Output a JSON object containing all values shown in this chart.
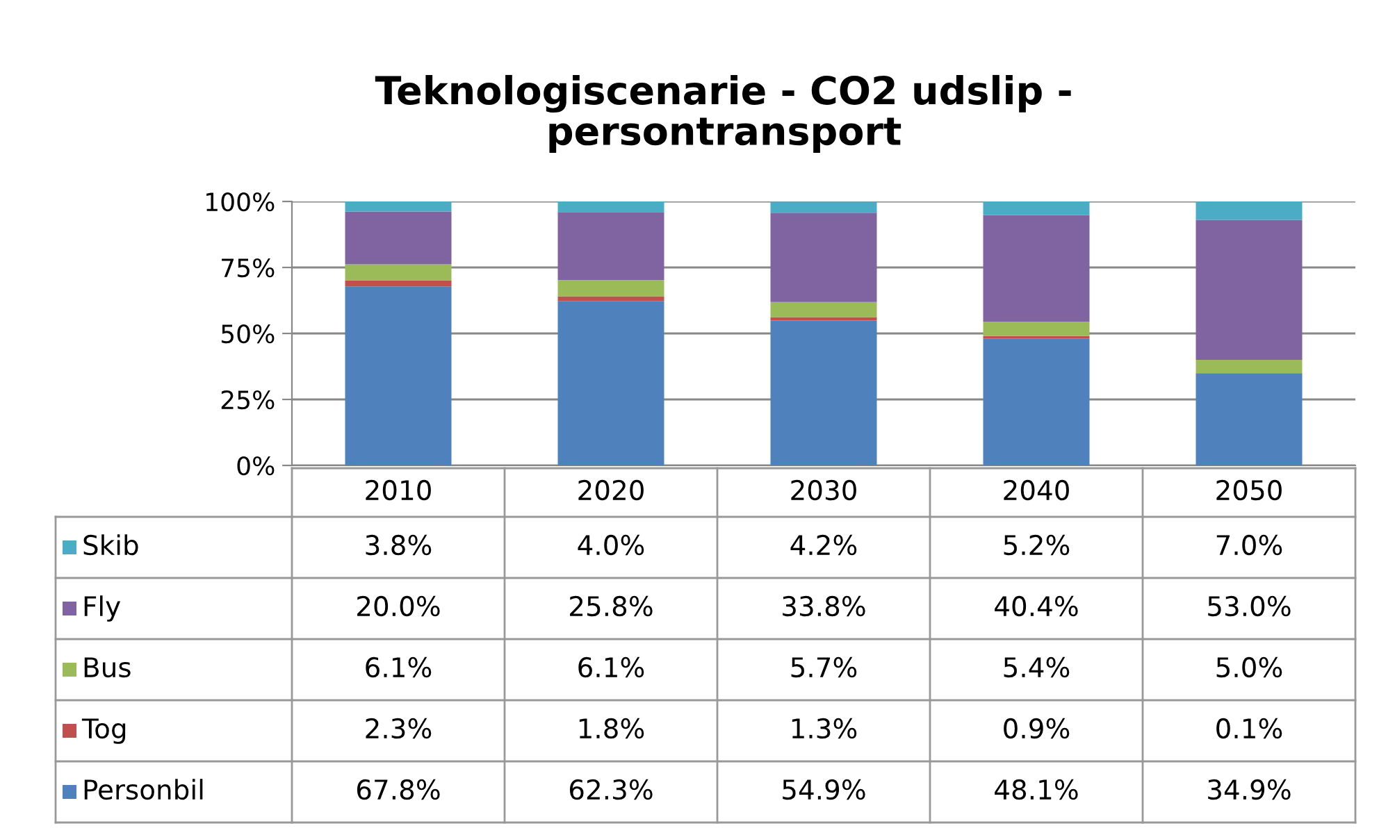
{
  "chart_data": {
    "type": "bar",
    "title": "Teknologiscenarie - CO2 udslip -\npersontransport",
    "categories": [
      "2010",
      "2020",
      "2030",
      "2040",
      "2050"
    ],
    "stacked": true,
    "ylim": [
      0,
      100
    ],
    "yticks": [
      {
        "value": 0,
        "label": "0%"
      },
      {
        "value": 25,
        "label": "25%"
      },
      {
        "value": 50,
        "label": "50%"
      },
      {
        "value": 75,
        "label": "75%"
      },
      {
        "value": 100,
        "label": "100%"
      }
    ],
    "grid": "y",
    "legend": "bottom left",
    "series": [
      {
        "name": "Personbil",
        "color": "#4f81bd",
        "values": [
          67.8,
          62.3,
          54.9,
          48.1,
          34.9
        ],
        "value_labels": [
          "67.8%",
          "62.3%",
          "54.9%",
          "48.1%",
          "34.9%"
        ]
      },
      {
        "name": "Tog",
        "color": "#c0504d",
        "values": [
          2.3,
          1.8,
          1.3,
          0.9,
          0.1
        ],
        "value_labels": [
          "2.3%",
          "1.8%",
          "1.3%",
          "0.9%",
          "0.1%"
        ]
      },
      {
        "name": "Bus",
        "color": "#9bbb59",
        "values": [
          6.1,
          6.1,
          5.7,
          5.4,
          5.0
        ],
        "value_labels": [
          "6.1%",
          "6.1%",
          "5.7%",
          "5.4%",
          "5.0%"
        ]
      },
      {
        "name": "Fly",
        "color": "#8064a2",
        "values": [
          20.0,
          25.8,
          33.8,
          40.4,
          53.0
        ],
        "value_labels": [
          "20.0%",
          "25.8%",
          "33.8%",
          "40.4%",
          "53.0%"
        ]
      },
      {
        "name": "Skib",
        "color": "#4bacc6",
        "values": [
          3.8,
          4.0,
          4.2,
          5.2,
          7.0
        ],
        "value_labels": [
          "3.8%",
          "4.0%",
          "4.2%",
          "5.2%",
          "7.0%"
        ]
      }
    ]
  }
}
